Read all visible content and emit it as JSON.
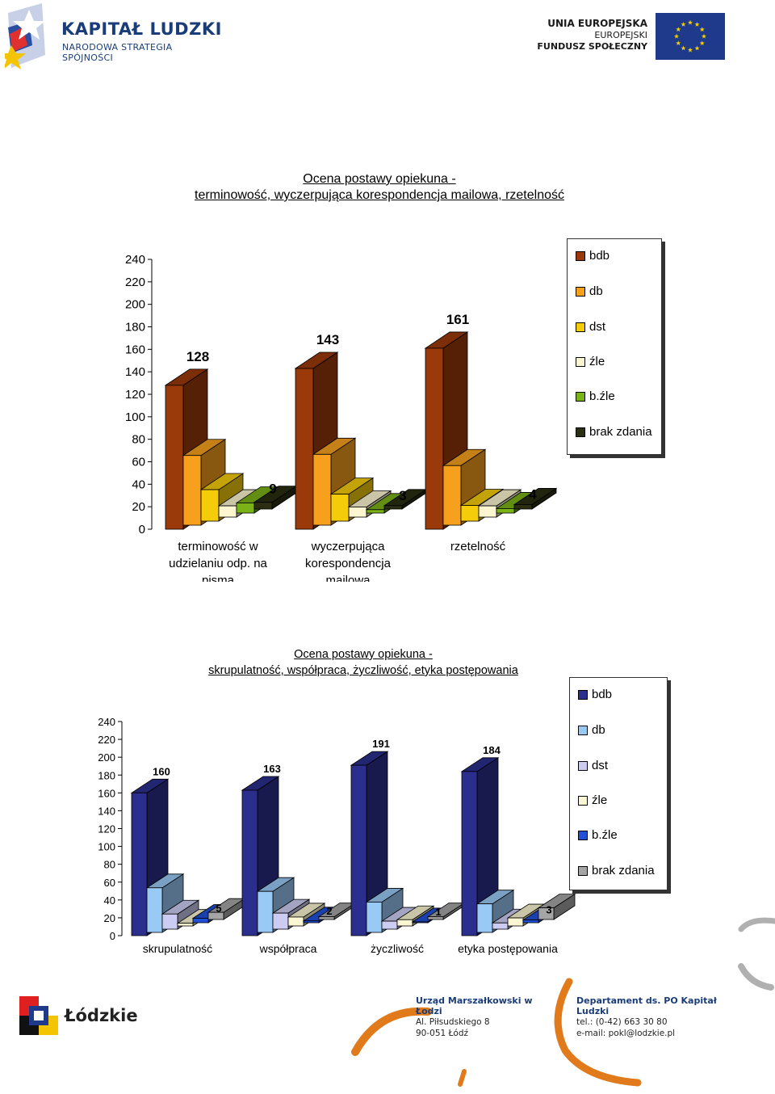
{
  "header": {
    "kapital_title": "KAPITAŁ LUDZKI",
    "kapital_subtitle": "NARODOWA STRATEGIA SPÓJNOŚCI",
    "ue_line1": "UNIA EUROPEJSKA",
    "ue_line2": "EUROPEJSKI",
    "ue_line3": "FUNDUSZ SPOŁECZNY"
  },
  "footer": {
    "lodzkie": "Łódzkie",
    "office_name": "Urząd Marszałkowski w Łodzi",
    "office_addr1": "Al. Piłsudskiego 8",
    "office_addr2": "90-051 Łódź",
    "dept_name": "Departament ds. PO Kapitał Ludzki",
    "dept_tel": "tel.: (0-42) 663 30 80",
    "dept_email": "e-mail: pokl@lodzkie.pl"
  },
  "chart_data": [
    {
      "type": "bar",
      "title_line1": "Ocena postawy opiekuna -",
      "title_line2": "terminowość, wyczerpująca korespondencja mailowa, rzetelność",
      "categories": [
        "terminowość w udzielaniu odp. na pisma",
        "wyczerpująca korespondencja mailowa",
        "rzetelność"
      ],
      "category_lines": [
        [
          "terminowość w",
          "udzielaniu odp. na",
          "pisma"
        ],
        [
          "wyczerpująca",
          "korespondencja",
          "mailowa"
        ],
        [
          "rzetelność"
        ]
      ],
      "ylim": [
        0,
        240
      ],
      "yticks": [
        0,
        20,
        40,
        60,
        80,
        100,
        120,
        140,
        160,
        180,
        200,
        220,
        240
      ],
      "series": [
        {
          "name": "bdb",
          "values": [
            128,
            143,
            161
          ],
          "color": "#9a3a0a",
          "label_index": 0
        },
        {
          "name": "db",
          "values": [
            62,
            63,
            53
          ],
          "color": "#f7a01e"
        },
        {
          "name": "dst",
          "values": [
            28,
            24,
            14
          ],
          "color": "#f5cc0a"
        },
        {
          "name": "źle",
          "values": [
            10,
            9,
            10
          ],
          "color": "#fbf6cf"
        },
        {
          "name": "b.źle",
          "values": [
            9,
            3,
            4
          ],
          "color": "#7ab317"
        },
        {
          "name": "brak zdania",
          "values": [
            6,
            3,
            4
          ],
          "color": "#2b2e12"
        }
      ],
      "data_labels": [
        "128",
        "9",
        "143",
        "3",
        "161",
        "4"
      ]
    },
    {
      "type": "bar",
      "title_line1": "Ocena postawy opiekuna -",
      "title_line2": "skrupulatność, współpraca, życzliwość, etyka postępowania",
      "categories": [
        "skrupulatność",
        "współpraca",
        "życzliwość",
        "etyka postępowania"
      ],
      "ylim": [
        0,
        240
      ],
      "yticks": [
        0,
        20,
        40,
        60,
        80,
        100,
        120,
        140,
        160,
        180,
        200,
        220,
        240
      ],
      "series": [
        {
          "name": "bdb",
          "values": [
            160,
            163,
            191,
            184
          ],
          "color": "#2b2e8c"
        },
        {
          "name": "db",
          "values": [
            50,
            46,
            34,
            32
          ],
          "color": "#99c9f5"
        },
        {
          "name": "dst",
          "values": [
            17,
            18,
            9,
            7
          ],
          "color": "#ccccf2"
        },
        {
          "name": "źle",
          "values": [
            3,
            10,
            7,
            9
          ],
          "color": "#fbf7d2"
        },
        {
          "name": "b.źle",
          "values": [
            5,
            2,
            1,
            3
          ],
          "color": "#2050d8"
        },
        {
          "name": "brak zdania",
          "values": [
            8,
            3,
            3,
            13
          ],
          "color": "#a5a5a5"
        }
      ],
      "data_labels": [
        "160",
        "5",
        "163",
        "2",
        "191",
        "1",
        "184",
        "3"
      ]
    }
  ]
}
